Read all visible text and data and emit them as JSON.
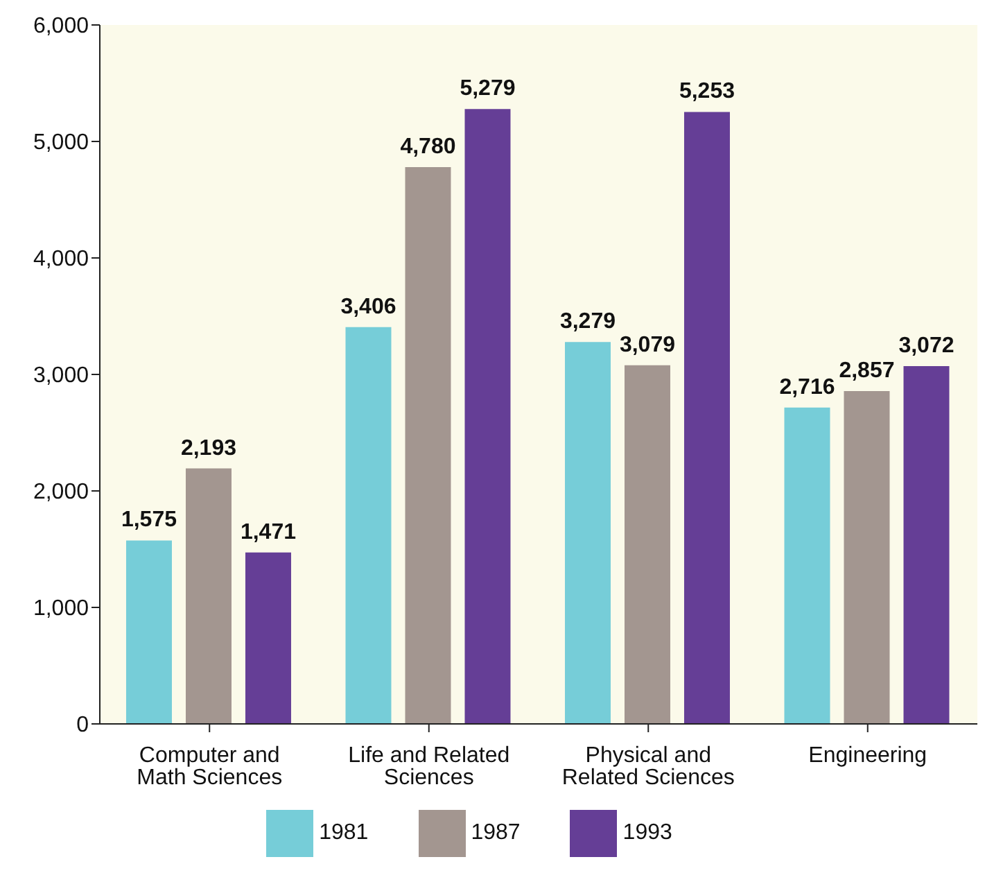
{
  "chart_data": {
    "type": "bar",
    "categories": [
      "Computer and Math Sciences",
      "Life and Related Sciences",
      "Physical and Related Sciences",
      "Engineering"
    ],
    "series": [
      {
        "name": "1981",
        "color": "#76cdd8",
        "values": [
          1575,
          3406,
          3279,
          2716
        ],
        "value_labels": [
          "1,575",
          "3,406",
          "3,279",
          "2,716"
        ]
      },
      {
        "name": "1987",
        "color": "#a39690",
        "values": [
          2193,
          4780,
          3079,
          2857
        ],
        "value_labels": [
          "2,193",
          "4,780",
          "3,079",
          "2,857"
        ]
      },
      {
        "name": "1993",
        "color": "#653e96",
        "values": [
          1471,
          5279,
          5253,
          3072
        ],
        "value_labels": [
          "1,471",
          "5,279",
          "5,253",
          "3,072"
        ]
      }
    ],
    "ylim": [
      0,
      6000
    ],
    "yticks": [
      0,
      {
        "value": 1000,
        "label": "1,000"
      },
      {
        "value": 2000,
        "label": "2,000"
      },
      {
        "value": 3000,
        "label": "3,000"
      },
      {
        "value": 4000,
        "label": "4,000"
      },
      {
        "value": 5000,
        "label": "5,000"
      },
      {
        "value": 6000,
        "label": "6,000"
      }
    ],
    "grid": false,
    "legend": "bottom"
  }
}
